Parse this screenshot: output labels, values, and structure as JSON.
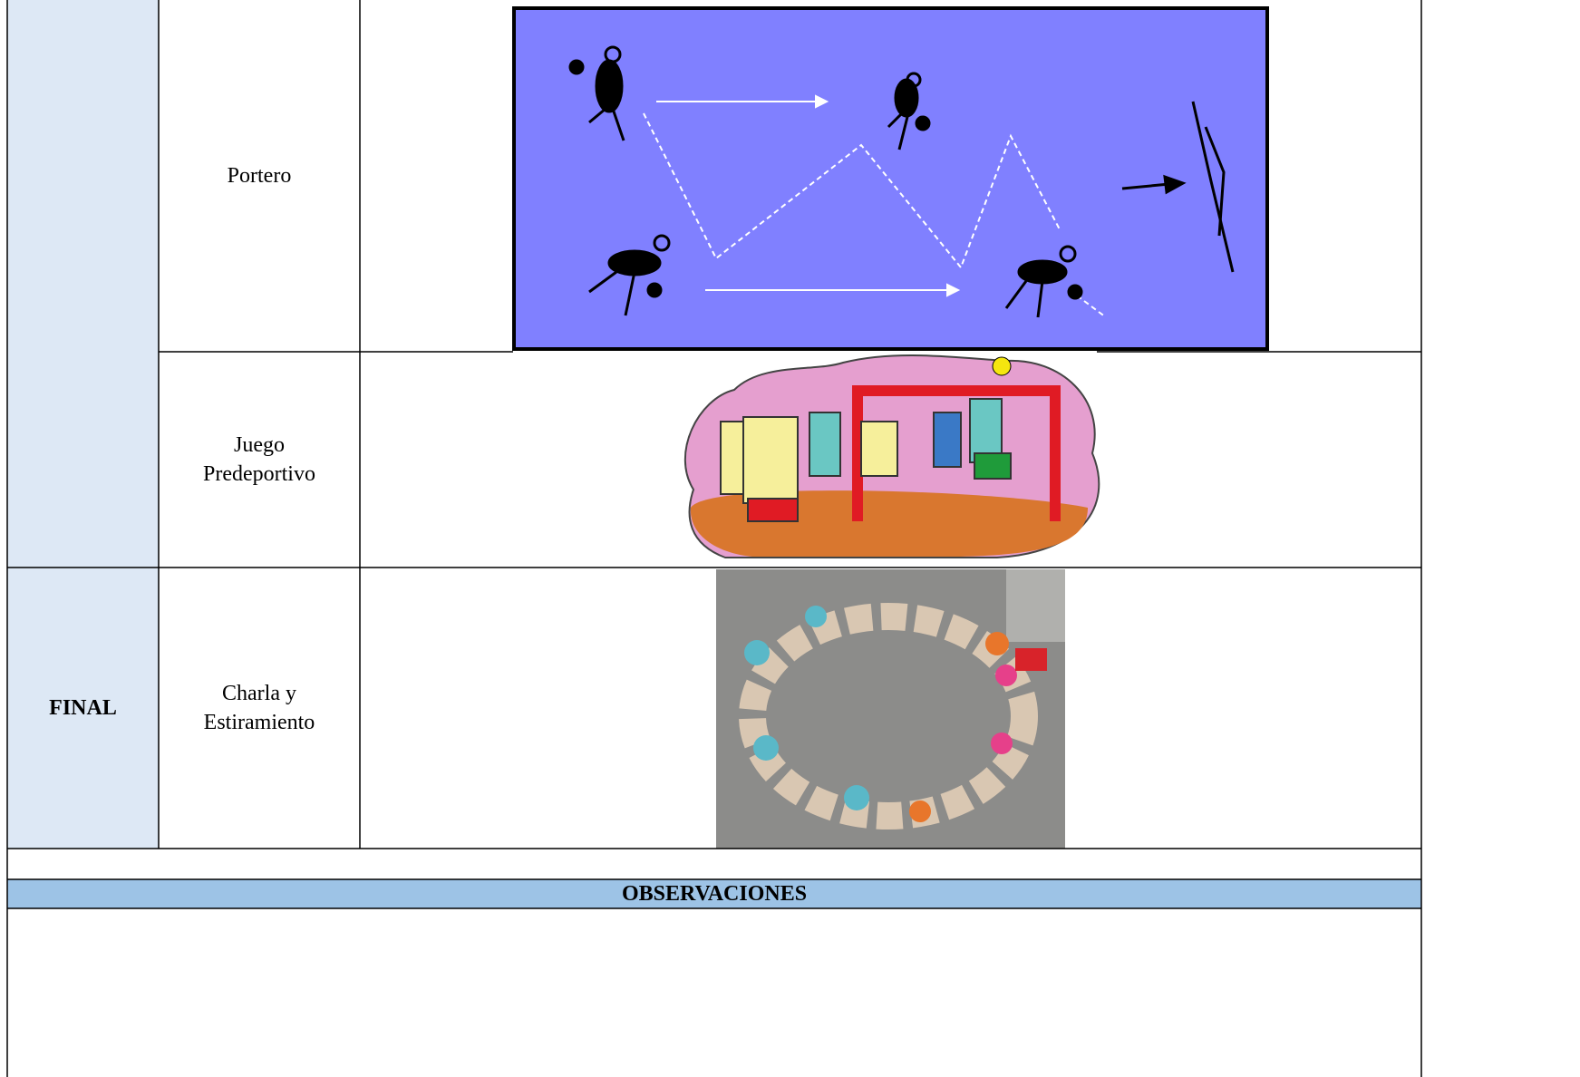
{
  "rows": [
    {
      "stage": null,
      "activity": "Portero"
    },
    {
      "stage": null,
      "activity": "Juego Predeportivo"
    },
    {
      "stage": "FINAL",
      "activity": "Charla y Estiramiento"
    }
  ],
  "observations": {
    "title": "OBSERVACIONES"
  }
}
